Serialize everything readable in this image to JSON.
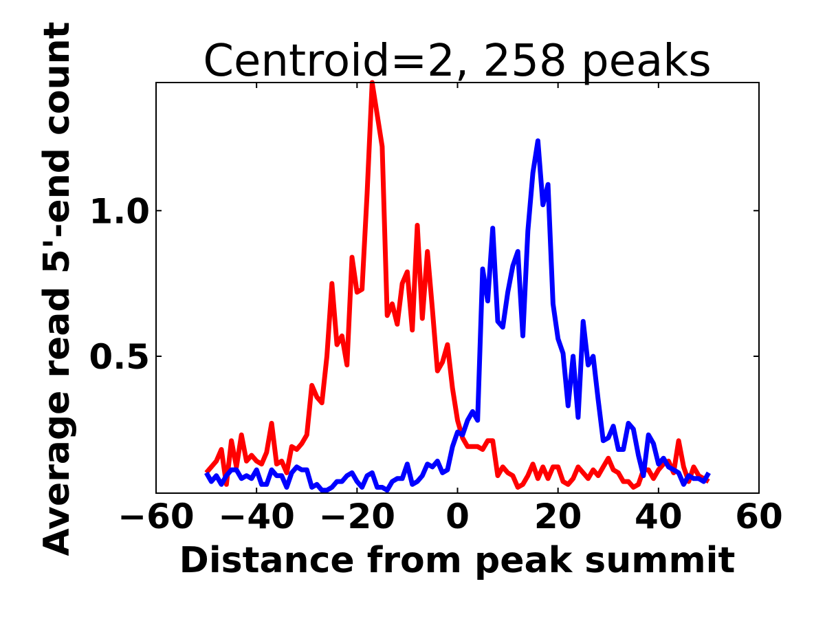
{
  "chart_data": {
    "type": "line",
    "title": "Centroid=2, 258 peaks",
    "xlabel": "Distance from peak summit",
    "ylabel": "Average read 5'-end count",
    "xlim": [
      -60,
      60
    ],
    "ylim": [
      0.03,
      1.44
    ],
    "xticks": [
      -60,
      -40,
      -20,
      0,
      20,
      40,
      60
    ],
    "xtick_labels": [
      "−60",
      "−40",
      "−20",
      "0",
      "20",
      "40",
      "60"
    ],
    "yticks": [
      0.5,
      1.0
    ],
    "ytick_labels": [
      "0.5",
      "1.0"
    ],
    "grid": false,
    "legend": "none",
    "x": [
      -50,
      -49,
      -48,
      -47,
      -46,
      -45,
      -44,
      -43,
      -42,
      -41,
      -40,
      -39,
      -38,
      -37,
      -36,
      -35,
      -34,
      -33,
      -32,
      -31,
      -30,
      -29,
      -28,
      -27,
      -26,
      -25,
      -24,
      -23,
      -22,
      -21,
      -20,
      -19,
      -18,
      -17,
      -16,
      -15,
      -14,
      -13,
      -12,
      -11,
      -10,
      -9,
      -8,
      -7,
      -6,
      -5,
      -4,
      -3,
      -2,
      -1,
      0,
      1,
      2,
      3,
      4,
      5,
      6,
      7,
      8,
      9,
      10,
      11,
      12,
      13,
      14,
      15,
      16,
      17,
      18,
      19,
      20,
      21,
      22,
      23,
      24,
      25,
      26,
      27,
      28,
      29,
      30,
      31,
      32,
      33,
      34,
      35,
      36,
      37,
      38,
      39,
      40,
      41,
      42,
      43,
      44,
      45,
      46,
      47,
      48,
      49,
      50
    ],
    "series": [
      {
        "color": "#ff0000",
        "values": [
          0.1,
          0.12,
          0.14,
          0.18,
          0.06,
          0.21,
          0.12,
          0.23,
          0.14,
          0.16,
          0.14,
          0.13,
          0.17,
          0.27,
          0.13,
          0.14,
          0.1,
          0.19,
          0.18,
          0.2,
          0.23,
          0.4,
          0.36,
          0.34,
          0.5,
          0.75,
          0.54,
          0.57,
          0.47,
          0.84,
          0.72,
          0.73,
          1.06,
          1.44,
          1.33,
          1.22,
          0.64,
          0.68,
          0.61,
          0.75,
          0.79,
          0.59,
          0.95,
          0.63,
          0.86,
          0.66,
          0.45,
          0.48,
          0.54,
          0.39,
          0.28,
          0.22,
          0.19,
          0.19,
          0.19,
          0.18,
          0.21,
          0.21,
          0.09,
          0.12,
          0.1,
          0.09,
          0.05,
          0.06,
          0.09,
          0.13,
          0.08,
          0.12,
          0.08,
          0.12,
          0.12,
          0.07,
          0.06,
          0.08,
          0.12,
          0.1,
          0.08,
          0.11,
          0.09,
          0.12,
          0.15,
          0.11,
          0.1,
          0.07,
          0.07,
          0.05,
          0.06,
          0.11,
          0.11,
          0.08,
          0.11,
          0.13,
          0.14,
          0.1,
          0.21,
          0.12,
          0.07,
          0.12,
          0.09,
          0.08,
          0.07
        ]
      },
      {
        "color": "#0000ff",
        "values": [
          0.1,
          0.07,
          0.09,
          0.06,
          0.09,
          0.11,
          0.11,
          0.08,
          0.09,
          0.08,
          0.11,
          0.06,
          0.06,
          0.11,
          0.09,
          0.09,
          0.05,
          0.1,
          0.12,
          0.11,
          0.11,
          0.05,
          0.06,
          0.04,
          0.04,
          0.05,
          0.07,
          0.07,
          0.09,
          0.1,
          0.07,
          0.05,
          0.09,
          0.1,
          0.05,
          0.05,
          0.04,
          0.07,
          0.08,
          0.08,
          0.13,
          0.06,
          0.07,
          0.09,
          0.13,
          0.12,
          0.14,
          0.1,
          0.11,
          0.19,
          0.24,
          0.23,
          0.28,
          0.31,
          0.28,
          0.8,
          0.69,
          0.94,
          0.62,
          0.6,
          0.72,
          0.81,
          0.86,
          0.57,
          0.93,
          1.13,
          1.24,
          1.02,
          1.09,
          0.68,
          0.56,
          0.51,
          0.33,
          0.5,
          0.29,
          0.62,
          0.47,
          0.5,
          0.35,
          0.21,
          0.22,
          0.26,
          0.18,
          0.18,
          0.27,
          0.25,
          0.16,
          0.09,
          0.23,
          0.2,
          0.13,
          0.15,
          0.12,
          0.11,
          0.1,
          0.06,
          0.09,
          0.08,
          0.08,
          0.07,
          0.1
        ]
      }
    ]
  }
}
